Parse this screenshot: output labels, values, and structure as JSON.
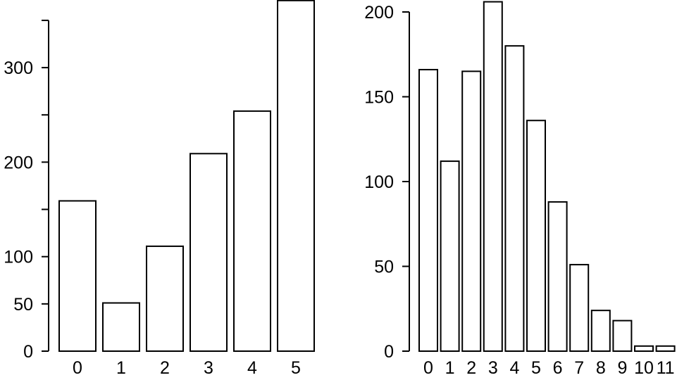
{
  "chart_data": [
    {
      "type": "bar",
      "title": "",
      "xlabel": "",
      "ylabel": "",
      "categories": [
        "0",
        "1",
        "2",
        "3",
        "4",
        "5"
      ],
      "values": [
        159,
        51,
        111,
        209,
        254,
        371
      ],
      "ylim": [
        0,
        350
      ],
      "yticks": [
        0,
        50,
        100,
        150,
        200,
        250,
        300,
        350
      ],
      "ytick_labels": [
        "0",
        "50",
        "100",
        "",
        "200",
        "",
        "300",
        ""
      ],
      "grid": false,
      "bar_fill": "#ffffff",
      "bar_stroke": "#000000"
    },
    {
      "type": "bar",
      "title": "",
      "xlabel": "",
      "ylabel": "",
      "categories": [
        "0",
        "1",
        "2",
        "3",
        "4",
        "5",
        "6",
        "7",
        "8",
        "9",
        "10",
        "11"
      ],
      "values": [
        166,
        112,
        165,
        206,
        180,
        136,
        88,
        51,
        24,
        18,
        3,
        3
      ],
      "ylim": [
        0,
        200
      ],
      "yticks": [
        0,
        50,
        100,
        150,
        200
      ],
      "ytick_labels": [
        "0",
        "50",
        "100",
        "150",
        "200"
      ],
      "grid": false,
      "bar_fill": "#ffffff",
      "bar_stroke": "#000000"
    }
  ]
}
